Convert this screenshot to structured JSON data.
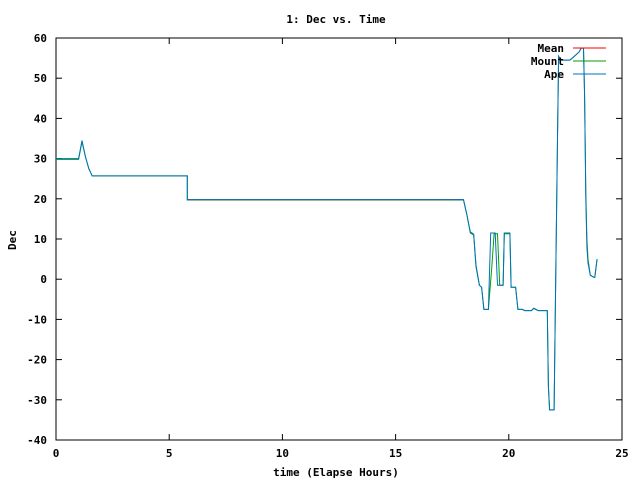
{
  "chart_data": {
    "type": "line",
    "title": "1: Dec vs. Time",
    "xlabel": "time (Elapse Hours)",
    "ylabel": "Dec",
    "xlim": [
      0,
      25
    ],
    "ylim": [
      -40,
      60
    ],
    "xticks": [
      0,
      5,
      10,
      15,
      20,
      25
    ],
    "yticks": [
      -40,
      -30,
      -20,
      -10,
      0,
      10,
      20,
      30,
      40,
      50,
      60
    ],
    "grid": false,
    "legend_position": "top-right",
    "series": [
      {
        "name": "Mean",
        "color": "#ff0000",
        "points": [
          [
            5.8,
            19.8
          ],
          [
            18.0,
            19.8
          ]
        ]
      },
      {
        "name": "Mount",
        "color": "#00a000",
        "points": [
          [
            0,
            29.8
          ],
          [
            1.0,
            29.8
          ],
          [
            1.15,
            34.2
          ],
          [
            1.3,
            30.5
          ],
          [
            1.45,
            27.5
          ],
          [
            1.6,
            25.7
          ],
          [
            5.8,
            25.7
          ],
          [
            5.8,
            19.7
          ],
          [
            18.0,
            19.7
          ],
          [
            18.15,
            16.0
          ],
          [
            18.3,
            11.5
          ],
          [
            18.45,
            11.0
          ],
          [
            18.55,
            3.0
          ],
          [
            18.7,
            -1.5
          ],
          [
            18.8,
            -2.0
          ],
          [
            18.9,
            -7.5
          ],
          [
            19.1,
            -7.5
          ],
          [
            19.25,
            3.0
          ],
          [
            19.35,
            11.3
          ],
          [
            19.5,
            11.3
          ],
          [
            19.6,
            -1.5
          ],
          [
            19.75,
            -1.5
          ],
          [
            19.8,
            11.3
          ],
          [
            20.05,
            11.3
          ],
          [
            20.1,
            -2.0
          ],
          [
            20.3,
            -2.0
          ],
          [
            20.4,
            -7.5
          ],
          [
            20.6,
            -7.5
          ],
          [
            20.7,
            -7.8
          ],
          [
            21.0,
            -7.8
          ],
          [
            21.1,
            -7.3
          ],
          [
            21.3,
            -7.8
          ],
          [
            21.7,
            -7.8
          ],
          [
            21.75,
            -27.0
          ],
          [
            21.8,
            -32.5
          ],
          [
            22.0,
            -32.5
          ],
          [
            22.05,
            -10.0
          ],
          [
            22.15,
            35.0
          ],
          [
            22.2,
            55.0
          ],
          [
            22.3,
            54.5
          ],
          [
            22.5,
            54.5
          ],
          [
            22.7,
            54.5
          ],
          [
            22.9,
            55.5
          ],
          [
            23.1,
            56.5
          ],
          [
            23.2,
            57.5
          ],
          [
            23.3,
            57.5
          ],
          [
            23.35,
            45.0
          ],
          [
            23.4,
            22.0
          ],
          [
            23.45,
            10.0
          ],
          [
            23.5,
            5.0
          ],
          [
            23.6,
            1.0
          ],
          [
            23.75,
            0.5
          ],
          [
            23.8,
            0.5
          ],
          [
            23.9,
            5.0
          ]
        ]
      },
      {
        "name": "Ape",
        "color": "#0070c0",
        "points": [
          [
            0,
            30.0
          ],
          [
            1.0,
            30.0
          ],
          [
            1.15,
            34.5
          ],
          [
            1.3,
            30.5
          ],
          [
            1.45,
            27.5
          ],
          [
            1.6,
            25.7
          ],
          [
            5.8,
            25.7
          ],
          [
            5.8,
            19.8
          ],
          [
            18.0,
            19.8
          ],
          [
            18.15,
            16.0
          ],
          [
            18.3,
            11.8
          ],
          [
            18.45,
            11.2
          ],
          [
            18.55,
            3.5
          ],
          [
            18.7,
            -1.5
          ],
          [
            18.8,
            -2.0
          ],
          [
            18.9,
            -7.5
          ],
          [
            19.1,
            -7.5
          ],
          [
            19.2,
            11.5
          ],
          [
            19.4,
            11.5
          ],
          [
            19.5,
            -1.5
          ],
          [
            19.75,
            -1.5
          ],
          [
            19.8,
            11.5
          ],
          [
            20.05,
            11.5
          ],
          [
            20.1,
            -2.0
          ],
          [
            20.3,
            -2.0
          ],
          [
            20.4,
            -7.5
          ],
          [
            20.6,
            -7.5
          ],
          [
            20.7,
            -7.8
          ],
          [
            21.0,
            -7.8
          ],
          [
            21.1,
            -7.2
          ],
          [
            21.3,
            -7.8
          ],
          [
            21.7,
            -7.8
          ],
          [
            21.75,
            -26.5
          ],
          [
            21.8,
            -32.5
          ],
          [
            22.0,
            -32.5
          ],
          [
            22.05,
            -10.0
          ],
          [
            22.15,
            35.0
          ],
          [
            22.2,
            55.5
          ],
          [
            22.3,
            54.5
          ],
          [
            22.7,
            54.5
          ],
          [
            22.9,
            55.5
          ],
          [
            23.1,
            56.5
          ],
          [
            23.2,
            57.5
          ],
          [
            23.3,
            57.5
          ],
          [
            23.35,
            46.0
          ],
          [
            23.4,
            20.0
          ],
          [
            23.45,
            8.0
          ],
          [
            23.5,
            4.0
          ],
          [
            23.6,
            1.0
          ],
          [
            23.75,
            0.5
          ],
          [
            23.8,
            0.5
          ],
          [
            23.9,
            5.0
          ]
        ]
      }
    ]
  }
}
